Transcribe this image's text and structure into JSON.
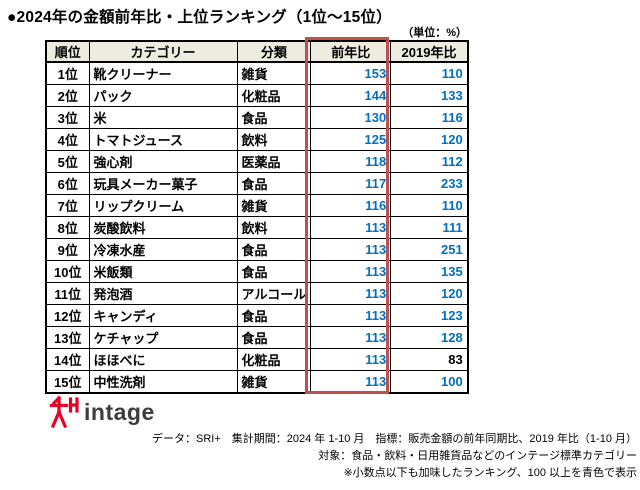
{
  "title": "●2024年の金額前年比・上位ランキング（1位～15位）",
  "unit_note": "（単位：%）",
  "table": {
    "headers": [
      "順位",
      "カテゴリー",
      "分類",
      "前年比",
      "2019年比"
    ],
    "rows": [
      {
        "rank": "1位",
        "category": "靴クリーナー",
        "class": "雑貨",
        "yoy": "153",
        "vs2019": "110"
      },
      {
        "rank": "2位",
        "category": "パック",
        "class": "化粧品",
        "yoy": "144",
        "vs2019": "133"
      },
      {
        "rank": "3位",
        "category": "米",
        "class": "食品",
        "yoy": "130",
        "vs2019": "116"
      },
      {
        "rank": "4位",
        "category": "トマトジュース",
        "class": "飲料",
        "yoy": "125",
        "vs2019": "120"
      },
      {
        "rank": "5位",
        "category": "強心剤",
        "class": "医薬品",
        "yoy": "118",
        "vs2019": "112"
      },
      {
        "rank": "6位",
        "category": "玩具メーカー菓子",
        "class": "食品",
        "yoy": "117",
        "vs2019": "233"
      },
      {
        "rank": "7位",
        "category": "リップクリーム",
        "class": "雑貨",
        "yoy": "116",
        "vs2019": "110"
      },
      {
        "rank": "8位",
        "category": "炭酸飲料",
        "class": "飲料",
        "yoy": "113",
        "vs2019": "111"
      },
      {
        "rank": "9位",
        "category": "冷凍水産",
        "class": "食品",
        "yoy": "113",
        "vs2019": "251"
      },
      {
        "rank": "10位",
        "category": "米飯類",
        "class": "食品",
        "yoy": "113",
        "vs2019": "135"
      },
      {
        "rank": "11位",
        "category": "発泡酒",
        "class": "アルコール",
        "yoy": "113",
        "vs2019": "120"
      },
      {
        "rank": "12位",
        "category": "キャンディ",
        "class": "食品",
        "yoy": "113",
        "vs2019": "123"
      },
      {
        "rank": "13位",
        "category": "ケチャップ",
        "class": "食品",
        "yoy": "113",
        "vs2019": "128"
      },
      {
        "rank": "14位",
        "category": "ほほべに",
        "class": "化粧品",
        "yoy": "113",
        "vs2019": "83"
      },
      {
        "rank": "15位",
        "category": "中性洗剤",
        "class": "雑貨",
        "yoy": "113",
        "vs2019": "100"
      }
    ],
    "colors": {
      "header_bg": "#EEECE1",
      "value_blue": "#0070C0",
      "highlight_border": "#C0504D",
      "grid": "#000000"
    }
  },
  "logo": {
    "text": "intage",
    "mark_color": "#E60027"
  },
  "footnotes": [
    "データ：SRI+　集計期間：2024 年 1-10 月　指標：販売金額の前年同期比、2019 年比（1-10 月）",
    "対象：食品・飲料・日用雑貨品などのインテージ標準カテゴリー",
    "※小数点以下も加味したランキング、100 以上を青色で表示"
  ]
}
